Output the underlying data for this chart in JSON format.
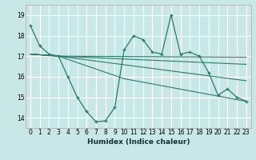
{
  "xlabel": "Humidex (Indice chaleur)",
  "xlim": [
    -0.5,
    23.5
  ],
  "ylim": [
    13.5,
    19.5
  ],
  "yticks": [
    14,
    15,
    16,
    17,
    18,
    19
  ],
  "xticks": [
    0,
    1,
    2,
    3,
    4,
    5,
    6,
    7,
    8,
    9,
    10,
    11,
    12,
    13,
    14,
    15,
    16,
    17,
    18,
    19,
    20,
    21,
    22,
    23
  ],
  "bg_color": "#c8e8e8",
  "grid_color": "#ffffff",
  "line_color": "#2a7a6a",
  "main_line": {
    "x": [
      0,
      1,
      2,
      3,
      4,
      5,
      6,
      7,
      8,
      9,
      10,
      11,
      12,
      13,
      14,
      15,
      16,
      17,
      18,
      19,
      20,
      21,
      22,
      23
    ],
    "y": [
      18.5,
      17.5,
      17.1,
      17.0,
      16.0,
      15.0,
      14.3,
      13.8,
      13.85,
      14.5,
      17.3,
      18.0,
      17.8,
      17.2,
      17.1,
      19.0,
      17.1,
      17.2,
      17.0,
      16.2,
      15.1,
      15.4,
      15.0,
      14.8
    ]
  },
  "trend_lines": [
    {
      "x": [
        0,
        3,
        23
      ],
      "y": [
        17.1,
        17.0,
        15.8
      ]
    },
    {
      "x": [
        0,
        3,
        23
      ],
      "y": [
        17.1,
        17.0,
        16.6
      ]
    },
    {
      "x": [
        0,
        3,
        23
      ],
      "y": [
        17.1,
        17.0,
        16.95
      ]
    },
    {
      "x": [
        0,
        3,
        10,
        23
      ],
      "y": [
        17.1,
        17.0,
        15.9,
        14.8
      ]
    }
  ]
}
